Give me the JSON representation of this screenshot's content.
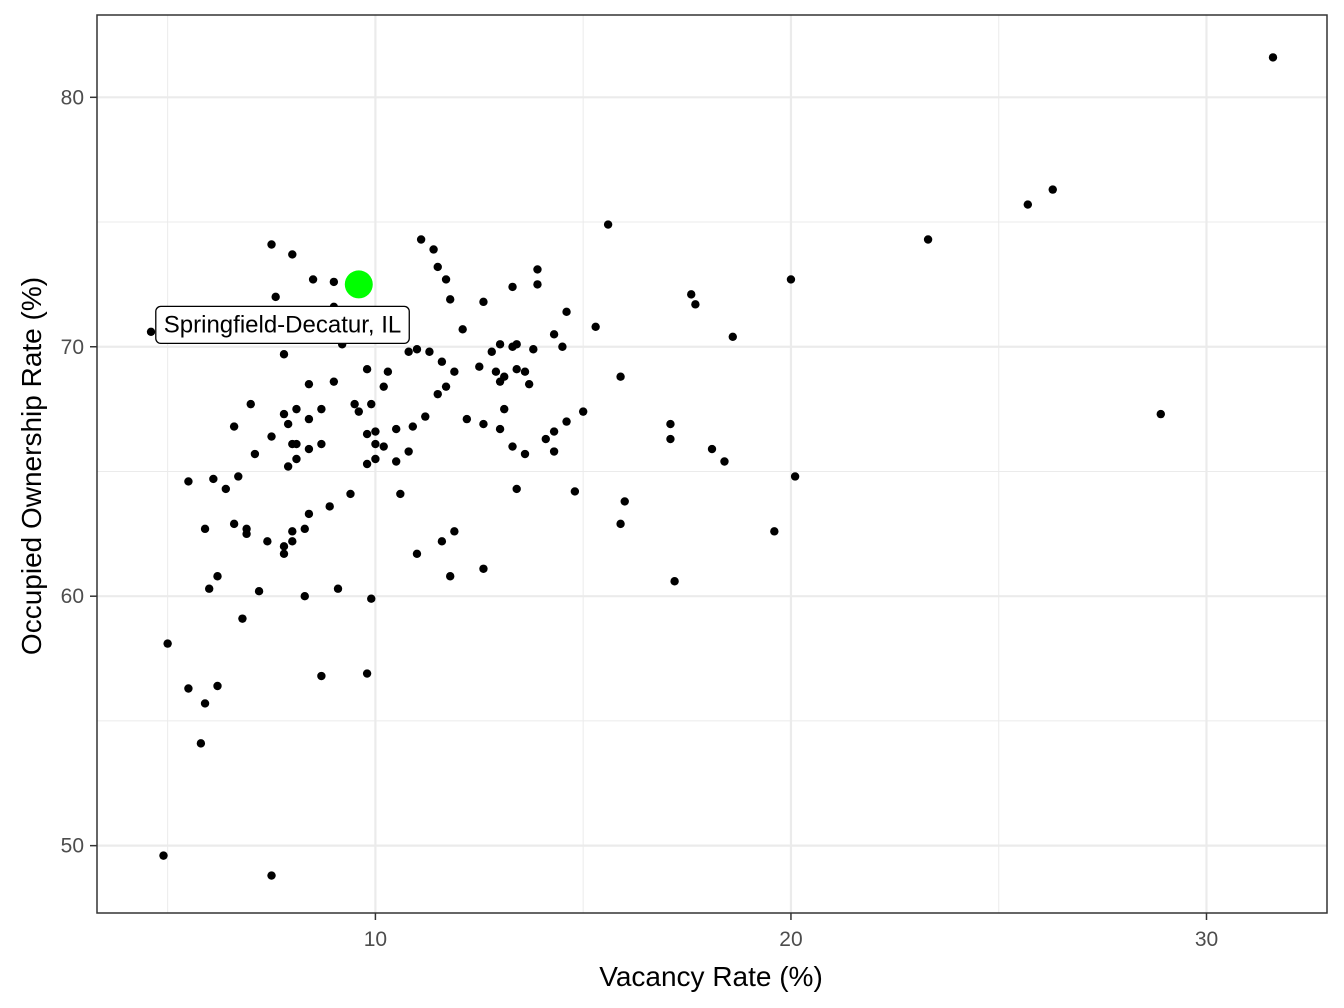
{
  "chart_data": {
    "type": "scatter",
    "title": "",
    "xlabel": "Vacancy Rate (%)",
    "ylabel": "Occupied Ownership Rate (%)",
    "xlim": [
      3.3,
      32.9
    ],
    "ylim": [
      47.3,
      83.3
    ],
    "x_ticks": [
      10,
      20,
      30
    ],
    "y_ticks": [
      50,
      60,
      70,
      80
    ],
    "grid": true,
    "colors": {
      "points": "#000000",
      "highlight": "#00ff00",
      "grid": "#ebebeb",
      "panel_border": "#333333"
    },
    "highlight": {
      "label": "Springfield-Decatur, IL",
      "x": 9.6,
      "y": 72.5
    },
    "points": [
      [
        31.6,
        81.6
      ],
      [
        26.3,
        76.3
      ],
      [
        25.7,
        75.7
      ],
      [
        23.3,
        74.3
      ],
      [
        28.9,
        67.3
      ],
      [
        15.6,
        74.9
      ],
      [
        11.1,
        74.3
      ],
      [
        11.4,
        73.9
      ],
      [
        11.5,
        73.2
      ],
      [
        11.7,
        72.7
      ],
      [
        11.8,
        71.9
      ],
      [
        12.6,
        71.8
      ],
      [
        13.3,
        72.4
      ],
      [
        13.9,
        73.1
      ],
      [
        13.9,
        72.5
      ],
      [
        14.6,
        71.4
      ],
      [
        15.3,
        70.8
      ],
      [
        14.3,
        70.5
      ],
      [
        14.5,
        70.0
      ],
      [
        13.3,
        70.0
      ],
      [
        13.4,
        70.1
      ],
      [
        13.8,
        69.9
      ],
      [
        12.8,
        69.8
      ],
      [
        13.0,
        70.1
      ],
      [
        11.3,
        69.8
      ],
      [
        12.1,
        70.7
      ],
      [
        11.6,
        69.4
      ],
      [
        11.9,
        69.0
      ],
      [
        12.5,
        69.2
      ],
      [
        12.9,
        69.0
      ],
      [
        13.1,
        68.8
      ],
      [
        13.4,
        69.1
      ],
      [
        13.6,
        69.0
      ],
      [
        13.0,
        68.6
      ],
      [
        13.7,
        68.5
      ],
      [
        11.5,
        68.1
      ],
      [
        11.7,
        68.4
      ],
      [
        10.3,
        69.0
      ],
      [
        10.2,
        68.4
      ],
      [
        9.8,
        69.1
      ],
      [
        10.8,
        69.8
      ],
      [
        11.0,
        69.9
      ],
      [
        9.5,
        67.7
      ],
      [
        9.6,
        67.4
      ],
      [
        9.9,
        67.7
      ],
      [
        9.8,
        66.5
      ],
      [
        10.0,
        66.6
      ],
      [
        10.5,
        66.7
      ],
      [
        10.9,
        66.8
      ],
      [
        11.2,
        67.2
      ],
      [
        12.2,
        67.1
      ],
      [
        12.6,
        66.9
      ],
      [
        13.1,
        67.5
      ],
      [
        13.0,
        66.7
      ],
      [
        13.3,
        66.0
      ],
      [
        13.6,
        65.7
      ],
      [
        14.1,
        66.3
      ],
      [
        14.3,
        66.6
      ],
      [
        14.6,
        67.0
      ],
      [
        15.0,
        67.4
      ],
      [
        14.3,
        65.8
      ],
      [
        10.0,
        66.1
      ],
      [
        10.2,
        66.0
      ],
      [
        10.0,
        65.5
      ],
      [
        9.8,
        65.3
      ],
      [
        10.5,
        65.4
      ],
      [
        10.8,
        65.8
      ],
      [
        10.6,
        64.1
      ],
      [
        9.4,
        64.1
      ],
      [
        8.9,
        63.6
      ],
      [
        8.4,
        63.3
      ],
      [
        8.3,
        62.7
      ],
      [
        8.0,
        62.6
      ],
      [
        8.0,
        62.2
      ],
      [
        7.8,
        62.0
      ],
      [
        7.8,
        61.7
      ],
      [
        11.0,
        61.7
      ],
      [
        11.6,
        62.2
      ],
      [
        11.9,
        62.6
      ],
      [
        12.6,
        61.1
      ],
      [
        11.8,
        60.8
      ],
      [
        13.4,
        64.3
      ],
      [
        14.8,
        64.2
      ],
      [
        15.9,
        62.9
      ],
      [
        16.0,
        63.8
      ],
      [
        15.9,
        68.8
      ],
      [
        17.1,
        66.9
      ],
      [
        17.1,
        66.3
      ],
      [
        17.2,
        60.6
      ],
      [
        18.1,
        65.9
      ],
      [
        18.4,
        65.4
      ],
      [
        17.6,
        72.1
      ],
      [
        17.7,
        71.7
      ],
      [
        18.6,
        70.4
      ],
      [
        20.0,
        72.7
      ],
      [
        20.1,
        64.8
      ],
      [
        19.6,
        62.6
      ],
      [
        9.0,
        71.6
      ],
      [
        9.2,
        70.1
      ],
      [
        9.0,
        68.6
      ],
      [
        8.4,
        68.5
      ],
      [
        8.7,
        67.5
      ],
      [
        8.1,
        67.5
      ],
      [
        7.8,
        67.3
      ],
      [
        8.4,
        67.1
      ],
      [
        7.9,
        66.9
      ],
      [
        8.0,
        66.1
      ],
      [
        8.1,
        66.1
      ],
      [
        8.4,
        65.9
      ],
      [
        8.7,
        66.1
      ],
      [
        8.1,
        65.5
      ],
      [
        7.9,
        65.2
      ],
      [
        7.5,
        66.4
      ],
      [
        7.1,
        65.7
      ],
      [
        7.0,
        67.7
      ],
      [
        6.6,
        66.8
      ],
      [
        6.7,
        64.8
      ],
      [
        6.4,
        64.3
      ],
      [
        6.1,
        64.7
      ],
      [
        5.5,
        64.6
      ],
      [
        7.6,
        72.0
      ],
      [
        7.8,
        69.7
      ],
      [
        7.5,
        74.1
      ],
      [
        8.0,
        73.7
      ],
      [
        8.5,
        72.7
      ],
      [
        9.0,
        72.6
      ],
      [
        4.6,
        70.6
      ],
      [
        5.9,
        62.7
      ],
      [
        6.6,
        62.9
      ],
      [
        6.9,
        62.7
      ],
      [
        6.9,
        62.5
      ],
      [
        7.4,
        62.2
      ],
      [
        6.2,
        60.8
      ],
      [
        6.0,
        60.3
      ],
      [
        7.2,
        60.2
      ],
      [
        8.3,
        60.0
      ],
      [
        9.1,
        60.3
      ],
      [
        9.9,
        59.9
      ],
      [
        6.8,
        59.1
      ],
      [
        5.0,
        58.1
      ],
      [
        5.5,
        56.3
      ],
      [
        6.2,
        56.4
      ],
      [
        5.9,
        55.7
      ],
      [
        5.8,
        54.1
      ],
      [
        8.7,
        56.8
      ],
      [
        9.8,
        56.9
      ],
      [
        4.9,
        49.6
      ],
      [
        7.5,
        48.8
      ]
    ]
  }
}
